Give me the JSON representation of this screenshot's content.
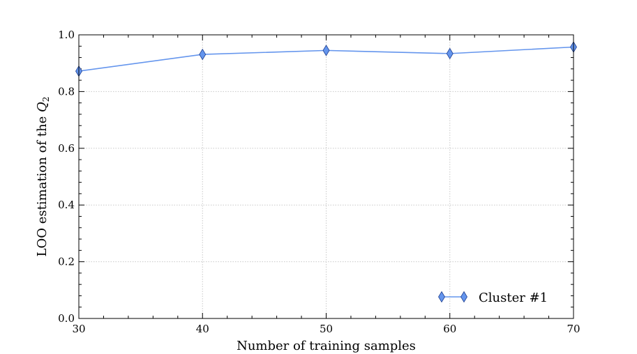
{
  "chart_data": {
    "type": "line",
    "xlabel": "Number of training samples",
    "ylabel": {
      "prefix": "LOO estimation of the ",
      "symbol": "Q",
      "subscript": "2"
    },
    "x": [
      30,
      40,
      50,
      60,
      70
    ],
    "series": [
      {
        "name": "Cluster #1",
        "values": [
          0.872,
          0.931,
          0.945,
          0.934,
          0.957
        ],
        "color": "#6495ed",
        "marker": "diamond"
      }
    ],
    "xlim": [
      30,
      70
    ],
    "ylim": [
      0.0,
      1.0
    ],
    "x_ticks": [
      30,
      40,
      50,
      60,
      70
    ],
    "x_tick_labels": [
      "30",
      "40",
      "50",
      "60",
      "70"
    ],
    "y_ticks": [
      0.0,
      0.2,
      0.4,
      0.6,
      0.8,
      1.0
    ],
    "y_tick_labels": [
      "0.0",
      "0.2",
      "0.4",
      "0.6",
      "0.8",
      "1.0"
    ],
    "grid": true,
    "legend_position": "lower-right"
  }
}
